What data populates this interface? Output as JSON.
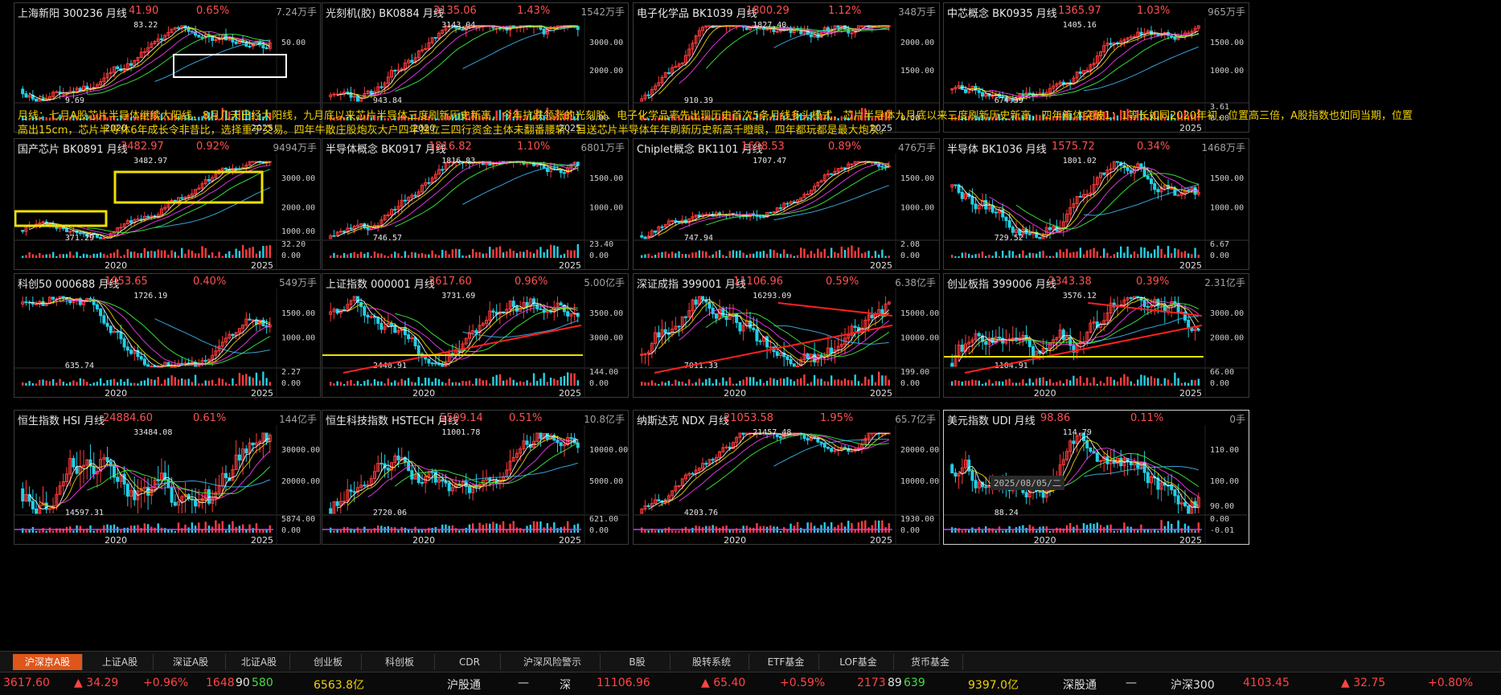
{
  "note": "月线：七月A股芯片半导体继续大阳线，8月几天已经大阳线，九月底以来芯片半导体三度刷新历史新高，今年抗跌领涨的光刻胶、电子化学品率先出现历史首次5条月线多头模式，芯片半导体九月底以来三度刷新历史新高，四年箱体突破1：1等长如同2020年初，位置高三倍，A股指数也如同当期，位置高出15cm，芯片半导体6年成长令非昔比，选择重于交易。四年牛散庄股炮灰大户四年独立三四行资金主体未翻番腰斩，目送芯片半导体年年刷新历史新高千瞪眼，四年都玩都是最大炮灰。",
  "tooltip": "2025/08/05/二",
  "panels": [
    {
      "name": "上海新阳 300236 月线",
      "price": "41.90",
      "pct": "0.65%",
      "vol": "7.24万手",
      "hi": "83.22",
      "lo": "9.69",
      "y1": "50.00",
      "y2": "",
      "v1": "",
      "v2": "",
      "x1": "2020",
      "x2": "2025",
      "seed": 11,
      "trend": 1.2
    },
    {
      "name": "光刻机(胶) BK0884 月线",
      "price": "3135.06",
      "pct": "1.43%",
      "vol": "1542万手",
      "hi": "3143.04",
      "lo": "943.84",
      "y1": "3000.00",
      "y2": "2000.00",
      "v1": "",
      "v2": "0.00",
      "x1": "2020",
      "x2": "2025",
      "seed": 23,
      "trend": 2.2
    },
    {
      "name": "电子化学品 BK1039 月线",
      "price": "1800.29",
      "pct": "1.12%",
      "vol": "348万手",
      "hi": "1827.40",
      "lo": "910.39",
      "y1": "2000.00",
      "y2": "1500.00",
      "v1": "",
      "v2": "0.00",
      "x1": "",
      "x2": "2025",
      "seed": 37,
      "trend": 2.0
    },
    {
      "name": "中芯概念 BK0935 月线",
      "price": "1365.97",
      "pct": "1.03%",
      "vol": "965万手",
      "hi": "1405.16",
      "lo": "674.39",
      "y1": "1500.00",
      "y2": "1000.00",
      "v1": "3.61",
      "v2": "0.00",
      "x1": "",
      "x2": "2025",
      "seed": 41,
      "trend": 1.6
    },
    {
      "name": "国产芯片 BK0891 月线",
      "price": "3482.97",
      "pct": "0.92%",
      "vol": "9494万手",
      "hi": "3482.97",
      "lo": "371.29",
      "y1": "3000.00",
      "y2": "2000.00",
      "y3": "1000.00",
      "v1": "32.20",
      "v2": "0.00",
      "x1": "2020",
      "x2": "2025",
      "seed": 53,
      "trend": 2.4
    },
    {
      "name": "半导体概念 BK0917 月线",
      "price": "1816.82",
      "pct": "1.10%",
      "vol": "6801万手",
      "hi": "1816.83",
      "lo": "746.57",
      "y1": "1500.00",
      "y2": "1000.00",
      "v1": "23.40",
      "v2": "0.00",
      "x1": "",
      "x2": "2025",
      "seed": 61,
      "trend": 1.8
    },
    {
      "name": "Chiplet概念 BK1101 月线",
      "price": "1698.53",
      "pct": "0.89%",
      "vol": "476万手",
      "hi": "1707.47",
      "lo": "747.94",
      "y1": "1500.00",
      "y2": "1000.00",
      "v1": "2.08",
      "v2": "0.00",
      "x1": "",
      "x2": "2025",
      "seed": 71,
      "trend": 2.2
    },
    {
      "name": "半导体 BK1036 月线",
      "price": "1575.72",
      "pct": "0.34%",
      "vol": "1468万手",
      "hi": "1801.02",
      "lo": "729.52",
      "y1": "1500.00",
      "y2": "1000.00",
      "v1": "6.67",
      "v2": "0.00",
      "x1": "",
      "x2": "2025",
      "seed": 79,
      "trend": 0.4
    },
    {
      "name": "科创50 000688 月线",
      "price": "1053.65",
      "pct": "0.40%",
      "vol": "549万手",
      "hi": "1726.19",
      "lo": "635.74",
      "y1": "1500.00",
      "y2": "1000.00",
      "v1": "2.27",
      "v2": "0.00",
      "x1": "2020",
      "x2": "2025",
      "seed": 83,
      "trend": -0.8
    },
    {
      "name": "上证指数 000001 月线",
      "price": "3617.60",
      "pct": "0.96%",
      "vol": "5.00亿手",
      "hi": "3731.69",
      "lo": "2440.91",
      "y1": "3500.00",
      "y2": "3000.00",
      "v1": "144.00",
      "v2": "0.00",
      "x1": "2020",
      "x2": "2025",
      "seed": 97,
      "trend": 0.5
    },
    {
      "name": "深证成指 399001 月线",
      "price": "11106.96",
      "pct": "0.59%",
      "vol": "6.38亿手",
      "hi": "16293.09",
      "lo": "7011.33",
      "y1": "15000.00",
      "y2": "10000.00",
      "v1": "199.00",
      "v2": "0.00",
      "x1": "2020",
      "x2": "2025",
      "seed": 101,
      "trend": 0.3
    },
    {
      "name": "创业板指 399006 月线",
      "price": "2343.38",
      "pct": "0.39%",
      "vol": "2.31亿手",
      "hi": "3576.12",
      "lo": "1104.91",
      "y1": "3000.00",
      "y2": "2000.00",
      "v1": "66.00",
      "v2": "0.00",
      "x1": "2020",
      "x2": "2025",
      "seed": 109,
      "trend": 0.4
    },
    {
      "name": "恒生指数 HSI 月线",
      "price": "24884.60",
      "pct": "0.61%",
      "vol": "144亿手",
      "hi": "33484.08",
      "lo": "14597.31",
      "y1": "30000.00",
      "y2": "20000.00",
      "v1": "5874.00",
      "v2": "0.00",
      "x1": "2020",
      "x2": "2025",
      "seed": 113,
      "trend": -0.2
    },
    {
      "name": "恒生科技指数 HSTECH 月线",
      "price": "5509.14",
      "pct": "0.51%",
      "vol": "10.8亿手",
      "hi": "11001.78",
      "lo": "2720.06",
      "y1": "10000.00",
      "y2": "5000.00",
      "v1": "621.00",
      "v2": "0.00",
      "x1": "2020",
      "x2": "2025",
      "seed": 127,
      "trend": 0.2
    },
    {
      "name": "纳斯达克 NDX 月线",
      "price": "21053.58",
      "pct": "1.95%",
      "vol": "65.7亿手",
      "hi": "21457.48",
      "lo": "4203.76",
      "y1": "20000.00",
      "y2": "10000.00",
      "v1": "1930.00",
      "v2": "0.00",
      "x1": "2020",
      "x2": "2025",
      "seed": 131,
      "trend": 3.0
    },
    {
      "name": "美元指数 UDI 月线",
      "price": "98.86",
      "pct": "0.11%",
      "vol": "0手",
      "hi": "114.79",
      "lo": "88.24",
      "y1": "110.00",
      "y2": "100.00",
      "y3": "90.00",
      "v1": "0.00",
      "v2": "-0.01",
      "x1": "2020",
      "x2": "2025",
      "seed": 137,
      "trend": 0.5
    }
  ],
  "tabs": [
    "沪深京A股",
    "上证A股",
    "深证A股",
    "北证A股",
    "创业板",
    "科创板",
    "CDR",
    "沪深风险警示",
    "B股",
    "股转系统",
    "ETF基金",
    "LOF基金",
    "货币基金"
  ],
  "status": {
    "sh_index": "3617.60",
    "sh_chg": "▲ 34.29",
    "sh_pct": "+0.96%",
    "sh_up": "1648",
    "sh_flat": "90",
    "sh_down": "580",
    "sh_amt": "6563.8亿",
    "hgt": "沪股通",
    "hgt_val": "—",
    "sz_short": "深",
    "sz_index": "11106.96",
    "sz_chg": "▲ 65.40",
    "sz_pct": "+0.59%",
    "sz_up": "2173",
    "sz_flat": "89",
    "sz_down": "639",
    "sz_amt": "9397.0亿",
    "sgt": "深股通",
    "sgt_val": "—",
    "hs300": "沪深300",
    "hs300_val": "4103.45",
    "hs300_chg": "▲ 32.75",
    "hs300_pct": "+0.80%"
  }
}
